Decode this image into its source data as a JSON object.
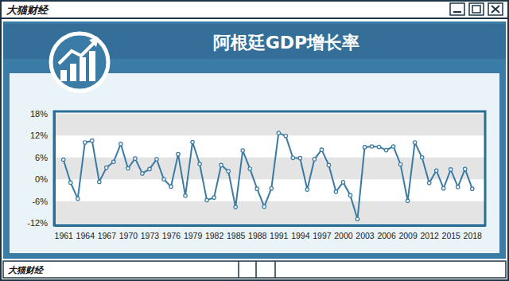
{
  "page": {
    "header": "大猫财经",
    "footer": "大猫财经"
  },
  "chart_data": {
    "type": "line",
    "title": "阿根廷GDP增长率",
    "x": [
      1961,
      1962,
      1963,
      1964,
      1965,
      1966,
      1967,
      1968,
      1969,
      1970,
      1971,
      1972,
      1973,
      1974,
      1975,
      1976,
      1977,
      1978,
      1979,
      1980,
      1981,
      1982,
      1983,
      1984,
      1985,
      1986,
      1987,
      1988,
      1989,
      1990,
      1991,
      1992,
      1993,
      1994,
      1995,
      1996,
      1997,
      1998,
      1999,
      2000,
      2001,
      2002,
      2003,
      2004,
      2005,
      2006,
      2007,
      2008,
      2009,
      2010,
      2011,
      2012,
      2013,
      2014,
      2015,
      2016,
      2017,
      2018
    ],
    "values": [
      5.4,
      -0.9,
      -5.3,
      10.1,
      10.6,
      -0.7,
      3.2,
      4.8,
      9.7,
      3.0,
      5.7,
      1.6,
      2.8,
      5.5,
      0.0,
      -2.0,
      6.9,
      -4.5,
      10.2,
      4.2,
      -5.7,
      -5.0,
      3.9,
      2.2,
      -7.6,
      7.9,
      2.9,
      -2.6,
      -7.5,
      -2.5,
      12.7,
      11.9,
      5.9,
      5.8,
      -2.8,
      5.5,
      8.1,
      3.9,
      -3.4,
      -0.8,
      -4.4,
      -10.9,
      8.8,
      9.0,
      8.9,
      8.0,
      9.0,
      4.1,
      -5.9,
      10.1,
      6.0,
      -1.0,
      2.4,
      -2.5,
      2.7,
      -2.1,
      2.8,
      -2.6
    ],
    "color": "#3a7aa3",
    "marker": "circle",
    "xlim": [
      1959.7,
      2019.8
    ],
    "xticks": [
      1961,
      1964,
      1967,
      1970,
      1973,
      1976,
      1979,
      1982,
      1985,
      1988,
      1991,
      1994,
      1997,
      2000,
      2003,
      2006,
      2009,
      2012,
      2015,
      2018
    ],
    "ylim": [
      -12.6,
      18.6
    ],
    "yticks": [
      {
        "value": -12,
        "label": "-12%"
      },
      {
        "value": -6,
        "label": "-6%"
      },
      {
        "value": 0,
        "label": "0%"
      },
      {
        "value": 6,
        "label": "6%"
      },
      {
        "value": 12,
        "label": "12%"
      },
      {
        "value": 18,
        "label": "18%"
      }
    ],
    "grid": true
  }
}
